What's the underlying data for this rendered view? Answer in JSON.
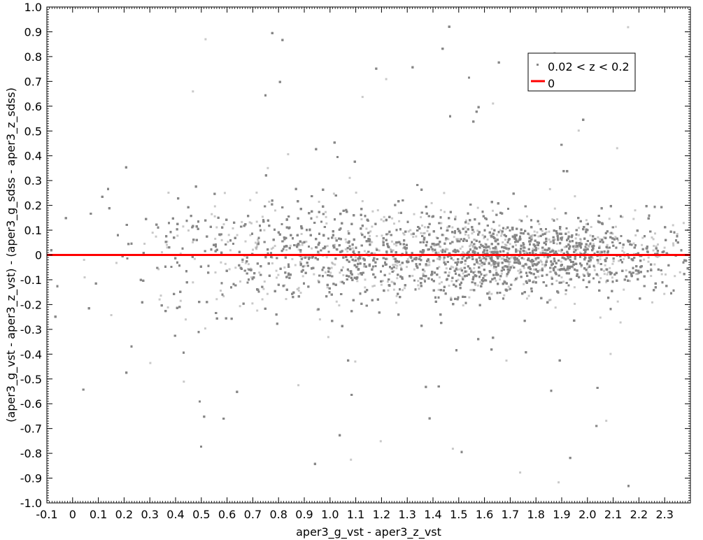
{
  "chart_data": {
    "type": "scatter",
    "title": "",
    "xlabel": "aper3_g_vst - aper3_z_vst",
    "ylabel": "(aper3_g_vst - aper3_z_vst) - (aper3_g_sdss - aper3_z_sdss)",
    "xlim": [
      -0.1,
      2.4
    ],
    "ylim": [
      -1.0,
      1.0
    ],
    "x_ticks": [
      -0.1,
      0,
      0.1,
      0.2,
      0.3,
      0.4,
      0.5,
      0.6,
      0.7,
      0.8,
      0.9,
      1.0,
      1.1,
      1.2,
      1.3,
      1.4,
      1.5,
      1.6,
      1.7,
      1.8,
      1.9,
      2.0,
      2.1,
      2.2,
      2.3
    ],
    "x_tick_labels": [
      "-0.1",
      "0",
      "0.1",
      "0.2",
      "0.3",
      "0.4",
      "0.5",
      "0.6",
      "0.7",
      "0.8",
      "0.9",
      "1.0",
      "1.1",
      "1.2",
      "1.3",
      "1.4",
      "1.5",
      "1.6",
      "1.7",
      "1.8",
      "1.9",
      "2.0",
      "2.1",
      "2.2",
      "2.3"
    ],
    "y_ticks": [
      -1.0,
      -0.9,
      -0.8,
      -0.7,
      -0.6,
      -0.5,
      -0.4,
      -0.3,
      -0.2,
      -0.1,
      0,
      0.1,
      0.2,
      0.3,
      0.4,
      0.5,
      0.6,
      0.7,
      0.8,
      0.9,
      1.0
    ],
    "y_tick_labels": [
      "-1.0",
      "-0.9",
      "-0.8",
      "-0.7",
      "-0.6",
      "-0.5",
      "-0.4",
      "-0.3",
      "-0.2",
      "-0.1",
      "0",
      "0.1",
      "0.2",
      "0.3",
      "0.4",
      "0.5",
      "0.6",
      "0.7",
      "0.8",
      "0.9",
      "1.0"
    ],
    "grid": false,
    "legend_position": "top-right",
    "series": [
      {
        "name": "0.02 < z < 0.2",
        "kind": "scatter",
        "color": "#888888",
        "description_density": [
          {
            "x": -0.05,
            "std": 0.3,
            "weight": 3
          },
          {
            "x": 0.1,
            "std": 0.25,
            "weight": 5
          },
          {
            "x": 0.3,
            "std": 0.18,
            "weight": 12
          },
          {
            "x": 0.5,
            "std": 0.14,
            "weight": 22
          },
          {
            "x": 0.7,
            "std": 0.12,
            "weight": 34
          },
          {
            "x": 0.9,
            "std": 0.1,
            "weight": 45
          },
          {
            "x": 1.1,
            "std": 0.095,
            "weight": 55
          },
          {
            "x": 1.3,
            "std": 0.09,
            "weight": 70
          },
          {
            "x": 1.5,
            "std": 0.085,
            "weight": 90
          },
          {
            "x": 1.65,
            "std": 0.075,
            "weight": 110
          },
          {
            "x": 1.8,
            "std": 0.075,
            "weight": 100
          },
          {
            "x": 2.0,
            "std": 0.075,
            "weight": 75
          },
          {
            "x": 2.2,
            "std": 0.08,
            "weight": 40
          },
          {
            "x": 2.35,
            "std": 0.09,
            "weight": 15
          }
        ]
      },
      {
        "name": "0",
        "kind": "line",
        "color": "#ff0000",
        "x": [
          -0.1,
          2.4
        ],
        "y": [
          0,
          0
        ]
      }
    ]
  }
}
